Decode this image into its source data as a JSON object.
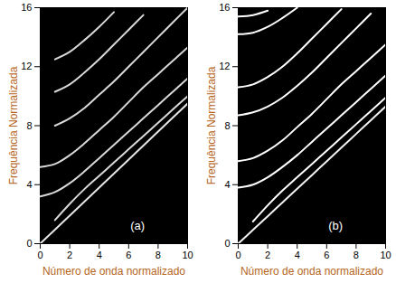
{
  "chart_data": [
    {
      "type": "line",
      "x_label": "Número de onda normalizado",
      "y_label": "Frequência Normalizada",
      "xlim": [
        0,
        10
      ],
      "ylim": [
        0,
        16
      ],
      "xticks": [
        0,
        2,
        4,
        6,
        8,
        10
      ],
      "yticks": [
        0,
        4,
        8,
        12,
        16
      ],
      "grid": false,
      "annotations": [
        {
          "text": "(a)",
          "x": 6.6,
          "y": 1.2
        }
      ],
      "x": [
        0,
        1,
        2,
        3,
        4,
        5,
        6,
        7,
        8,
        9,
        10
      ],
      "series": [
        {
          "color": "#e6e6e6",
          "values": [
            0,
            0.95,
            1.9,
            2.85,
            3.8,
            4.75,
            5.7,
            6.65,
            7.6,
            8.55,
            9.5
          ]
        },
        {
          "color": "#d9d9d9",
          "values": [
            null,
            1.6,
            2.7,
            3.7,
            4.6,
            5.5,
            6.4,
            7.3,
            8.2,
            9.1,
            10.0
          ]
        },
        {
          "color": "#d9d9d9",
          "values": [
            3.2,
            3.5,
            4.1,
            4.9,
            5.8,
            6.7,
            7.6,
            8.5,
            9.4,
            10.3,
            11.2
          ]
        },
        {
          "color": "#d9d9d9",
          "values": [
            5.2,
            5.4,
            6.0,
            6.8,
            7.7,
            8.6,
            9.6,
            10.6,
            11.5,
            12.4,
            13.3
          ]
        },
        {
          "color": "#d9d9d9",
          "values": [
            null,
            8.0,
            8.5,
            9.2,
            10.1,
            11.0,
            12.0,
            13.0,
            14.0,
            15.0,
            16.0
          ]
        },
        {
          "color": "#d9d9d9",
          "values": [
            null,
            10.3,
            10.8,
            11.6,
            12.5,
            13.5,
            14.5,
            15.5,
            null,
            null,
            null
          ]
        },
        {
          "color": "#d9d9d9",
          "values": [
            null,
            12.5,
            13.0,
            13.8,
            14.7,
            15.7,
            null,
            null,
            null,
            null,
            null
          ]
        }
      ]
    },
    {
      "type": "line",
      "x_label": "Número de onda normalizado",
      "y_label": "Frequência Normalizada",
      "xlim": [
        0,
        10
      ],
      "ylim": [
        0,
        16
      ],
      "xticks": [
        0,
        2,
        4,
        6,
        8,
        10
      ],
      "yticks": [
        0,
        4,
        8,
        12,
        16
      ],
      "grid": false,
      "annotations": [
        {
          "text": "(b)",
          "x": 6.6,
          "y": 1.2
        }
      ],
      "x": [
        0,
        1,
        2,
        3,
        4,
        5,
        6,
        7,
        8,
        9,
        10
      ],
      "series": [
        {
          "color": "#f2f2f2",
          "values": [
            0,
            0.93,
            1.86,
            2.79,
            3.72,
            4.65,
            5.58,
            6.51,
            7.44,
            8.37,
            9.3
          ]
        },
        {
          "color": "#ffffff",
          "values": [
            null,
            1.5,
            2.6,
            3.6,
            4.5,
            5.4,
            6.3,
            7.2,
            8.1,
            9.0,
            9.9
          ]
        },
        {
          "color": "#ffffff",
          "values": [
            3.8,
            4.0,
            4.5,
            5.2,
            6.0,
            6.9,
            7.8,
            8.7,
            9.6,
            10.5,
            11.4
          ]
        },
        {
          "color": "#ffffff",
          "values": [
            5.6,
            5.8,
            6.3,
            7.0,
            7.9,
            8.8,
            9.8,
            10.8,
            11.7,
            12.6,
            13.5
          ]
        },
        {
          "color": "#ffffff",
          "values": [
            8.7,
            8.9,
            9.3,
            9.9,
            10.7,
            11.6,
            12.6,
            13.6,
            14.6,
            15.6,
            null
          ]
        },
        {
          "color": "#ffffff",
          "values": [
            10.6,
            10.8,
            11.3,
            12.0,
            12.9,
            13.9,
            14.9,
            15.9,
            null,
            null,
            null
          ]
        },
        {
          "color": "#ffffff",
          "values": [
            14.2,
            14.3,
            14.7,
            15.3,
            16.0,
            null,
            null,
            null,
            null,
            null,
            null
          ]
        },
        {
          "color": "#ffffff",
          "values": [
            15.4,
            15.5,
            15.8,
            null,
            null,
            null,
            null,
            null,
            null,
            null,
            null
          ]
        }
      ]
    }
  ]
}
